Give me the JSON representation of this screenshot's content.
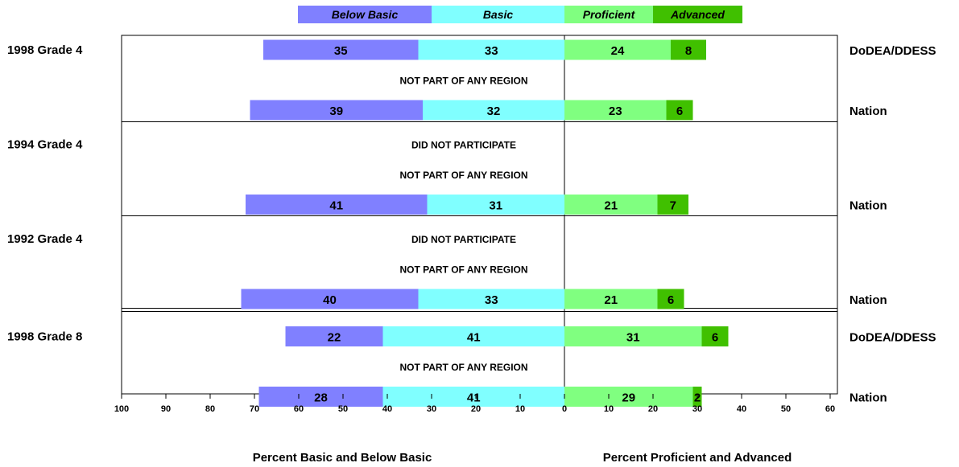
{
  "chart_data": {
    "type": "bar",
    "orientation": "horizontal-diverging",
    "legend": {
      "placement": "top-center",
      "entries": [
        {
          "key": "below_basic",
          "label": "Below Basic",
          "color": "#8080ff"
        },
        {
          "key": "basic",
          "label": "Basic",
          "color": "#80ffff"
        },
        {
          "key": "proficient",
          "label": "Proficient",
          "color": "#80ff80"
        },
        {
          "key": "advanced",
          "label": "Advanced",
          "color": "#40c000"
        }
      ]
    },
    "xlim": [
      -100,
      60
    ],
    "x_ticks": [
      -100,
      -90,
      -80,
      -70,
      -60,
      -50,
      -40,
      -30,
      -20,
      -10,
      0,
      10,
      20,
      30,
      40,
      50,
      60
    ],
    "x_tick_labels": [
      "100",
      "90",
      "80",
      "70",
      "60",
      "50",
      "40",
      "30",
      "20",
      "10",
      "0",
      "10",
      "20",
      "30",
      "40",
      "50",
      "60"
    ],
    "xlabel_left": "Percent Basic and Below Basic",
    "xlabel_right": "Percent Proficient and Advanced",
    "grid": false,
    "groups": [
      {
        "label": "1998 Grade 4",
        "rows": [
          {
            "type": "bar",
            "label": "DoDEA/DDESS",
            "below_basic": 35,
            "basic": 33,
            "proficient": 24,
            "advanced": 8
          },
          {
            "type": "note",
            "text": "NOT PART OF ANY REGION"
          },
          {
            "type": "bar",
            "label": "Nation",
            "below_basic": 39,
            "basic": 32,
            "proficient": 23,
            "advanced": 6
          }
        ]
      },
      {
        "label": "1994 Grade 4",
        "rows": [
          {
            "type": "note",
            "text": "DID NOT PARTICIPATE"
          },
          {
            "type": "note",
            "text": "NOT PART OF ANY REGION"
          },
          {
            "type": "bar",
            "label": "Nation",
            "below_basic": 41,
            "basic": 31,
            "proficient": 21,
            "advanced": 7
          }
        ]
      },
      {
        "label": "1992 Grade 4",
        "rows": [
          {
            "type": "note",
            "text": "DID NOT PARTICIPATE"
          },
          {
            "type": "note",
            "text": "NOT PART OF ANY REGION"
          },
          {
            "type": "bar",
            "label": "Nation",
            "below_basic": 40,
            "basic": 33,
            "proficient": 21,
            "advanced": 6
          }
        ]
      },
      {
        "label": "1998 Grade 8",
        "rows": [
          {
            "type": "bar",
            "label": "DoDEA/DDESS",
            "below_basic": 22,
            "basic": 41,
            "proficient": 31,
            "advanced": 6
          },
          {
            "type": "note",
            "text": "NOT PART OF ANY REGION"
          },
          {
            "type": "bar",
            "label": "Nation",
            "below_basic": 28,
            "basic": 41,
            "proficient": 29,
            "advanced": 2
          }
        ]
      }
    ]
  }
}
